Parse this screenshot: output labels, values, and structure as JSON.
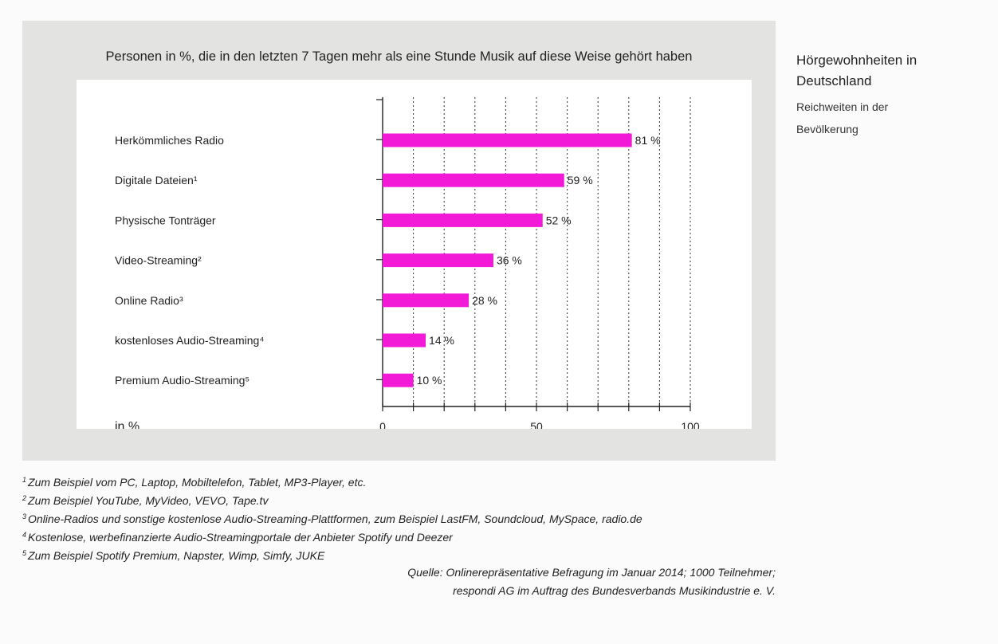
{
  "header": {
    "title": "Hörgewohnheiten in Deutschland",
    "subtitle": "Reichweiten in der Bevölkerung"
  },
  "chart_data": {
    "type": "bar",
    "orientation": "horizontal",
    "title": "Personen in %, die in den letzten 7 Tagen mehr als eine Stunde Musik auf diese Weise gehört haben",
    "categories": [
      "Herkömmliches Radio",
      "Digitale Dateien¹",
      "Physische Tonträger",
      "Video-Streaming²",
      "Online Radio³",
      "kostenloses Audio-Streaming⁴",
      "Premium Audio-Streaming⁵"
    ],
    "values": [
      81,
      59,
      52,
      36,
      28,
      14,
      10
    ],
    "value_labels": [
      "81 %",
      "59 %",
      "52 %",
      "36 %",
      "28 %",
      "14 %",
      "10 %"
    ],
    "xlabel": "in %",
    "xlim": [
      0,
      100
    ],
    "x_ticks": [
      0,
      50,
      100
    ],
    "grid": "vertical dotted, every 10",
    "bar_color": "#f21ad6"
  },
  "footnotes": [
    {
      "mark": "1",
      "text": "Zum Beispiel vom PC, Laptop, Mobiltelefon, Tablet, MP3-Player, etc."
    },
    {
      "mark": "2",
      "text": "Zum Beispiel YouTube, MyVideo, VEVO, Tape.tv"
    },
    {
      "mark": "3",
      "text": "Online-Radios und sonstige kostenlose Audio-Streaming-Plattformen, zum Beispiel LastFM, Soundcloud, MySpace, radio.de"
    },
    {
      "mark": "4",
      "text": "Kostenlose, werbefinanzierte Audio-Streamingportale der Anbieter Spotify und Deezer"
    },
    {
      "mark": "5",
      "text": "Zum Beispiel Spotify Premium, Napster, Wimp, Simfy, JUKE"
    }
  ],
  "source": {
    "line1": "Quelle: Onlinerepräsentative Befragung im Januar 2014; 1000 Teilnehmer;",
    "line2": "respondi AG im Auftrag des Bundesverbands Musikindustrie e. V."
  }
}
